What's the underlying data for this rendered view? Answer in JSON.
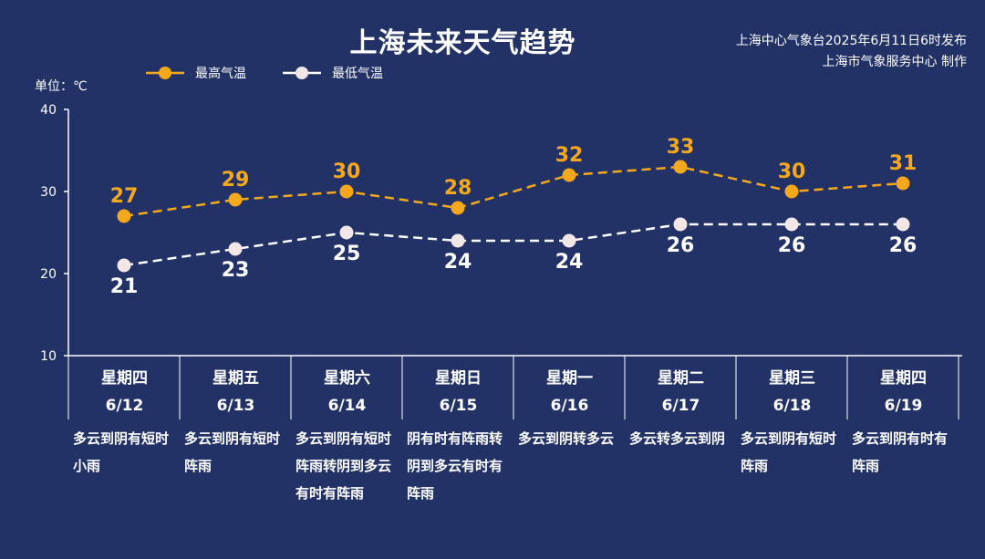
{
  "title": "上海未来天气趋势",
  "publisher": {
    "line1": "上海中心气象台2025年6月11日6时发布",
    "line2": "上海市气象服务中心 制作"
  },
  "unit_label": "单位：℃",
  "colors": {
    "background": "#233266",
    "high": "#F5A81C",
    "low": "#FFFFFF",
    "axis": "#FFFFFF"
  },
  "chart_data": {
    "type": "line",
    "x": [
      "星期四 6/12",
      "星期五 6/13",
      "星期六 6/14",
      "星期日 6/15",
      "星期一 6/16",
      "星期二 6/17",
      "星期三 6/18",
      "星期四 6/19"
    ],
    "ylim": [
      10,
      40
    ],
    "yticks": [
      "10",
      "20",
      "30",
      "40"
    ],
    "series": [
      {
        "name": "最高气温",
        "values": [
          27,
          29,
          30,
          28,
          32,
          33,
          30,
          31
        ]
      },
      {
        "name": "最低气温",
        "values": [
          21,
          23,
          25,
          24,
          24,
          26,
          26,
          26
        ]
      }
    ],
    "legend_position": "top-left",
    "grid": false
  },
  "days": [
    {
      "weekday": "星期四",
      "date": "6/12",
      "desc": "多云到阴有短时小雨"
    },
    {
      "weekday": "星期五",
      "date": "6/13",
      "desc": "多云到阴有短时阵雨"
    },
    {
      "weekday": "星期六",
      "date": "6/14",
      "desc": "多云到阴有短时阵雨转阴到多云有时有阵雨"
    },
    {
      "weekday": "星期日",
      "date": "6/15",
      "desc": "阴有时有阵雨转阴到多云有时有阵雨"
    },
    {
      "weekday": "星期一",
      "date": "6/16",
      "desc": "多云到阴转多云"
    },
    {
      "weekday": "星期二",
      "date": "6/17",
      "desc": "多云转多云到阴"
    },
    {
      "weekday": "星期三",
      "date": "6/18",
      "desc": "多云到阴有短时阵雨"
    },
    {
      "weekday": "星期四",
      "date": "6/19",
      "desc": "多云到阴有时有阵雨"
    }
  ]
}
